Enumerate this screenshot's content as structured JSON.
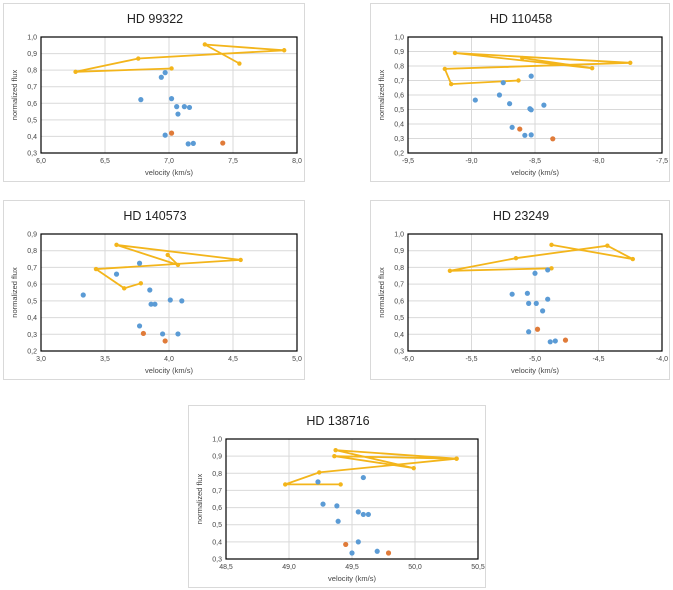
{
  "colors": {
    "line": "#f3b51b",
    "blue": "#5b9bd5",
    "orange": "#e07b39",
    "grid": "#d9d9d9"
  },
  "chart_data": [
    {
      "type": "scatter",
      "title": "HD 99322",
      "xlabel": "velocity (km/s)",
      "ylabel": "normalized flux",
      "xlim": [
        6.0,
        8.0
      ],
      "ylim": [
        0.3,
        1.0
      ],
      "xticks": [
        6.0,
        6.5,
        7.0,
        7.5,
        8.0
      ],
      "xtick_labels": [
        "6,0",
        "6,5",
        "7,0",
        "7,5",
        "8,0"
      ],
      "yticks": [
        0.3,
        0.4,
        0.5,
        0.6,
        0.7,
        0.8,
        0.9,
        1.0
      ],
      "ytick_labels": [
        "0,3",
        "0,4",
        "0,5",
        "0,6",
        "0,7",
        "0,8",
        "0,9",
        "1,0"
      ],
      "grid": true,
      "series": [
        {
          "name": "line",
          "kind": "line",
          "points": [
            [
              7.02,
              0.81
            ],
            [
              6.27,
              0.79
            ],
            [
              6.76,
              0.87
            ],
            [
              7.9,
              0.92
            ],
            [
              7.28,
              0.955
            ],
            [
              7.55,
              0.84
            ]
          ]
        },
        {
          "name": "blue",
          "kind": "scatter",
          "points": [
            [
              6.97,
              0.785
            ],
            [
              6.94,
              0.757
            ],
            [
              6.78,
              0.622
            ],
            [
              7.02,
              0.628
            ],
            [
              7.06,
              0.58
            ],
            [
              7.12,
              0.58
            ],
            [
              7.16,
              0.575
            ],
            [
              7.07,
              0.535
            ],
            [
              6.97,
              0.408
            ],
            [
              7.15,
              0.355
            ],
            [
              7.19,
              0.358
            ]
          ]
        },
        {
          "name": "orange",
          "kind": "scatter",
          "points": [
            [
              7.02,
              0.42
            ],
            [
              7.42,
              0.36
            ]
          ]
        }
      ]
    },
    {
      "type": "scatter",
      "title": "HD 110458",
      "xlabel": "velocity (km/s)",
      "ylabel": "normalized flux",
      "xlim": [
        -9.5,
        -7.5
      ],
      "ylim": [
        0.2,
        1.0
      ],
      "xticks": [
        -9.5,
        -9.0,
        -8.5,
        -8.0,
        -7.5
      ],
      "xtick_labels": [
        "-9,5",
        "-9,0",
        "-8,5",
        "-8,0",
        "-7,5"
      ],
      "yticks": [
        0.2,
        0.3,
        0.4,
        0.5,
        0.6,
        0.7,
        0.8,
        0.9,
        1.0
      ],
      "ytick_labels": [
        "0,2",
        "0,3",
        "0,4",
        "0,5",
        "0,6",
        "0,7",
        "0,8",
        "0,9",
        "1,0"
      ],
      "grid": true,
      "series": [
        {
          "name": "line",
          "kind": "line",
          "points": [
            [
              -8.63,
              0.7
            ],
            [
              -9.16,
              0.675
            ],
            [
              -9.21,
              0.78
            ],
            [
              -7.75,
              0.822
            ],
            [
              -9.13,
              0.89
            ],
            [
              -8.05,
              0.785
            ],
            [
              -8.6,
              0.855
            ]
          ]
        },
        {
          "name": "blue",
          "kind": "scatter",
          "points": [
            [
              -8.53,
              0.73
            ],
            [
              -8.75,
              0.685
            ],
            [
              -8.78,
              0.6
            ],
            [
              -8.97,
              0.565
            ],
            [
              -8.7,
              0.54
            ],
            [
              -8.54,
              0.505
            ],
            [
              -8.53,
              0.498
            ],
            [
              -8.43,
              0.53
            ],
            [
              -8.68,
              0.377
            ],
            [
              -8.58,
              0.322
            ],
            [
              -8.53,
              0.325
            ]
          ]
        },
        {
          "name": "orange",
          "kind": "scatter",
          "points": [
            [
              -8.62,
              0.365
            ],
            [
              -8.36,
              0.298
            ]
          ]
        }
      ]
    },
    {
      "type": "scatter",
      "title": "HD 140573",
      "xlabel": "velocity (km/s)",
      "ylabel": "normalized flux",
      "xlim": [
        3.0,
        5.0
      ],
      "ylim": [
        0.2,
        0.9
      ],
      "xticks": [
        3.0,
        3.5,
        4.0,
        4.5,
        5.0
      ],
      "xtick_labels": [
        "3,0",
        "3,5",
        "4,0",
        "4,5",
        "5,0"
      ],
      "yticks": [
        0.2,
        0.3,
        0.4,
        0.5,
        0.6,
        0.7,
        0.8,
        0.9
      ],
      "ytick_labels": [
        "0,2",
        "0,3",
        "0,4",
        "0,5",
        "0,6",
        "0,7",
        "0,8",
        "0,9"
      ],
      "grid": true,
      "series": [
        {
          "name": "line",
          "kind": "line",
          "points": [
            [
              3.78,
              0.605
            ],
            [
              3.65,
              0.575
            ],
            [
              3.43,
              0.69
            ],
            [
              4.56,
              0.745
            ],
            [
              3.59,
              0.835
            ],
            [
              4.07,
              0.715
            ],
            [
              3.99,
              0.775
            ]
          ]
        },
        {
          "name": "blue",
          "kind": "scatter",
          "points": [
            [
              3.77,
              0.725
            ],
            [
              3.59,
              0.66
            ],
            [
              3.33,
              0.535
            ],
            [
              3.85,
              0.565
            ],
            [
              4.01,
              0.505
            ],
            [
              4.1,
              0.5
            ],
            [
              3.86,
              0.48
            ],
            [
              3.89,
              0.48
            ],
            [
              3.77,
              0.35
            ],
            [
              3.95,
              0.302
            ],
            [
              4.07,
              0.302
            ]
          ]
        },
        {
          "name": "orange",
          "kind": "scatter",
          "points": [
            [
              3.8,
              0.305
            ],
            [
              3.97,
              0.26
            ]
          ]
        }
      ]
    },
    {
      "type": "scatter",
      "title": "HD 23249",
      "xlabel": "velocity (km/s)",
      "ylabel": "normalized flux",
      "xlim": [
        -6.0,
        -4.0
      ],
      "ylim": [
        0.3,
        1.0
      ],
      "xticks": [
        -6.0,
        -5.5,
        -5.0,
        -4.5,
        -4.0
      ],
      "xtick_labels": [
        "-6,0",
        "-5,5",
        "-5,0",
        "-4,5",
        "-4,0"
      ],
      "yticks": [
        0.3,
        0.4,
        0.5,
        0.6,
        0.7,
        0.8,
        0.9,
        1.0
      ],
      "ytick_labels": [
        "0,3",
        "0,4",
        "0,5",
        "0,6",
        "0,7",
        "0,8",
        "0,9",
        "1,0"
      ],
      "grid": true,
      "series": [
        {
          "name": "line",
          "kind": "line",
          "points": [
            [
              -4.87,
              0.795
            ],
            [
              -5.67,
              0.78
            ],
            [
              -5.15,
              0.855
            ],
            [
              -4.43,
              0.93
            ],
            [
              -4.23,
              0.85
            ],
            [
              -4.87,
              0.935
            ]
          ]
        },
        {
          "name": "blue",
          "kind": "scatter",
          "points": [
            [
              -4.9,
              0.785
            ],
            [
              -5.0,
              0.765
            ],
            [
              -5.18,
              0.64
            ],
            [
              -5.06,
              0.645
            ],
            [
              -5.05,
              0.585
            ],
            [
              -4.99,
              0.585
            ],
            [
              -4.9,
              0.61
            ],
            [
              -4.94,
              0.54
            ],
            [
              -5.05,
              0.415
            ],
            [
              -4.88,
              0.355
            ],
            [
              -4.84,
              0.36
            ]
          ]
        },
        {
          "name": "orange",
          "kind": "scatter",
          "points": [
            [
              -4.98,
              0.43
            ],
            [
              -4.76,
              0.365
            ]
          ]
        }
      ]
    },
    {
      "type": "scatter",
      "title": "HD 138716",
      "xlabel": "velocity (km/s)",
      "ylabel": "normalized flux",
      "xlim": [
        48.5,
        50.5
      ],
      "ylim": [
        0.3,
        1.0
      ],
      "xticks": [
        48.5,
        49.0,
        49.5,
        50.0,
        50.5
      ],
      "xtick_labels": [
        "48,5",
        "49,0",
        "49,5",
        "50,0",
        "50,5"
      ],
      "yticks": [
        0.3,
        0.4,
        0.5,
        0.6,
        0.7,
        0.8,
        0.9,
        1.0
      ],
      "ytick_labels": [
        "0,3",
        "0,4",
        "0,5",
        "0,6",
        "0,7",
        "0,8",
        "0,9",
        "1,0"
      ],
      "grid": true,
      "series": [
        {
          "name": "line",
          "kind": "line",
          "points": [
            [
              49.41,
              0.735
            ],
            [
              48.97,
              0.735
            ],
            [
              49.24,
              0.805
            ],
            [
              50.33,
              0.885
            ],
            [
              49.37,
              0.935
            ],
            [
              49.99,
              0.83
            ],
            [
              49.36,
              0.9
            ],
            [
              50.33,
              0.885
            ]
          ]
        },
        {
          "name": "blue",
          "kind": "scatter",
          "points": [
            [
              49.59,
              0.775
            ],
            [
              49.23,
              0.75
            ],
            [
              49.27,
              0.62
            ],
            [
              49.38,
              0.61
            ],
            [
              49.55,
              0.575
            ],
            [
              49.59,
              0.56
            ],
            [
              49.63,
              0.56
            ],
            [
              49.39,
              0.52
            ],
            [
              49.55,
              0.4
            ],
            [
              49.5,
              0.335
            ],
            [
              49.7,
              0.345
            ]
          ]
        },
        {
          "name": "orange",
          "kind": "scatter",
          "points": [
            [
              49.45,
              0.385
            ],
            [
              49.79,
              0.335
            ]
          ]
        }
      ]
    }
  ]
}
